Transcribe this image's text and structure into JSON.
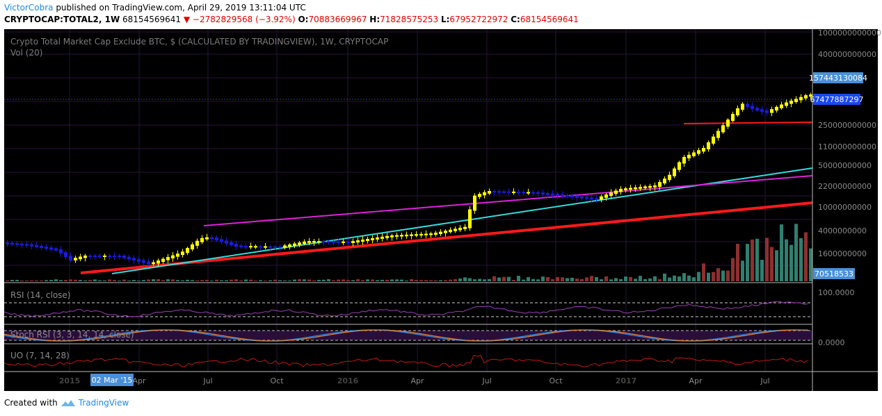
{
  "header": {
    "user": "VictorCobra",
    "published_text": "published on TradingView.com, April 29, 2019 13:11:04 UTC",
    "symbol": "CRYPTOCAP:TOTAL2, 1W",
    "last": "68154569641",
    "change": "▼ −2782829568 (−3.92%)",
    "open_label": "O:",
    "open": "70883669967",
    "high_label": "H:",
    "high": "71828575253",
    "low_label": "L:",
    "low": "67952722972",
    "close_label": "C:",
    "close": "68154569641"
  },
  "main_pane": {
    "title": "Crypto Total Market Cap Exclude BTC, $ (CALCULATED BY TRADINGVIEW), 1W, CRYPTOCAP",
    "vol_label": "Vol (20)",
    "axis_labels": [
      "1000000000000",
      "400000000000",
      "250000000000",
      "110000000000",
      "50000000000",
      "22000000000",
      "10000000000",
      "4000000000",
      "1600000000"
    ],
    "price_marker_1": "157443130084",
    "price_marker_2": "67477887297",
    "volume_marker": "70518533"
  },
  "rsi": {
    "label": "RSI (14, close)",
    "axis_value": "100.0000"
  },
  "stoch": {
    "label": "Stoch RSI (3, 3, 14, 14, close)",
    "axis_value": "0.0000"
  },
  "uo": {
    "label": "UO (7, 14, 28)"
  },
  "time_axis": {
    "labels": [
      "2015",
      "Apr",
      "Jul",
      "Oct",
      "2016",
      "Apr",
      "Jul",
      "Oct",
      "2017",
      "Apr",
      "Jul"
    ],
    "cursor_label": "02 Mar '15"
  },
  "footer": {
    "created_with": "Created with",
    "brand": "TradingView",
    "icon": "tradingview-logo-icon"
  },
  "colors": {
    "background": "#000000",
    "up": "#ffff00",
    "down": "#1a1ae6",
    "support_red": "#ff1a1a",
    "trend_magenta": "#dd22dd",
    "trend_cyan": "#33dddd",
    "vol_up": "#2f7f6f",
    "vol_down": "#8f2f2f",
    "marker_blue": "#1848f0",
    "axis_marker": "#4a90d8"
  }
}
